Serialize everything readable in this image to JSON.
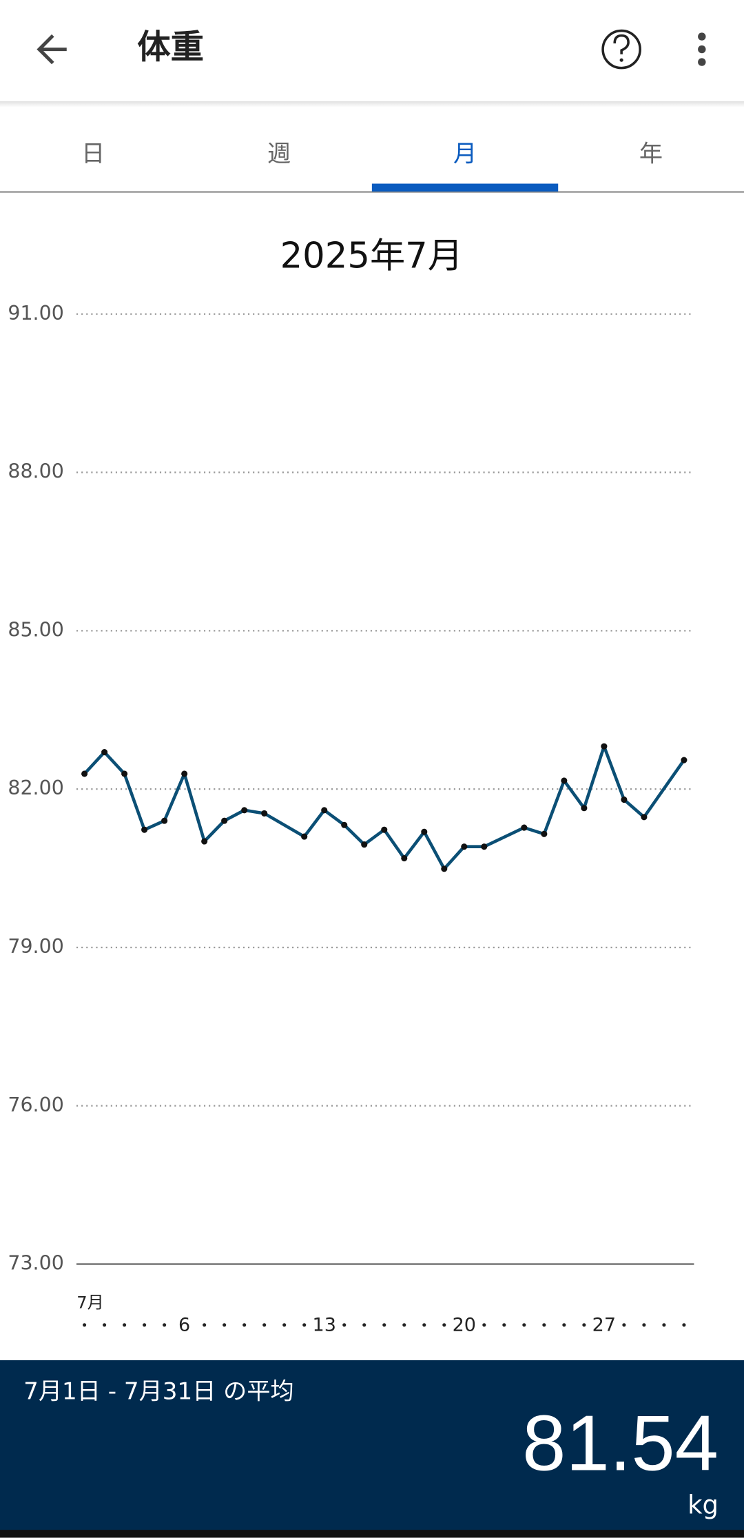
{
  "header": {
    "title": "体重"
  },
  "tabs": [
    "日",
    "週",
    "月",
    "年"
  ],
  "selected_tab": "月",
  "chart_data": {
    "type": "line",
    "title": "2025年7月",
    "x": [
      1,
      2,
      3,
      4,
      5,
      6,
      7,
      8,
      9,
      10,
      12,
      13,
      14,
      15,
      16,
      17,
      18,
      19,
      20,
      21,
      23,
      24,
      25,
      26,
      27,
      28,
      29,
      31
    ],
    "series": [
      {
        "color": "#0b4f75",
        "values": [
          82.29,
          82.7,
          82.29,
          81.23,
          81.4,
          82.29,
          81.01,
          81.4,
          81.6,
          81.54,
          81.1,
          81.6,
          81.32,
          80.95,
          81.23,
          80.69,
          81.19,
          80.49,
          80.91,
          80.91,
          81.27,
          81.15,
          82.16,
          81.64,
          82.81,
          81.8,
          81.47,
          82.55
        ]
      }
    ],
    "xlim": [
      0.6,
      31.5
    ],
    "xticks": [
      {
        "value": 1,
        "label": "7月"
      },
      6,
      13,
      20,
      27
    ],
    "ylim": [
      73,
      91
    ],
    "yticks": [
      {
        "value": 91,
        "label": "91.00"
      },
      {
        "value": 88,
        "label": "88.00"
      },
      {
        "value": 85,
        "label": "85.00"
      },
      {
        "value": 82,
        "label": "82.00"
      },
      {
        "value": 79,
        "label": "79.00"
      },
      {
        "value": 76,
        "label": "76.00"
      },
      {
        "value": 73,
        "label": "73.00"
      }
    ],
    "grid": true
  },
  "summary": {
    "label": "7月1日 - 7月31日 の平均",
    "value": 81.54,
    "unit": "kg"
  }
}
